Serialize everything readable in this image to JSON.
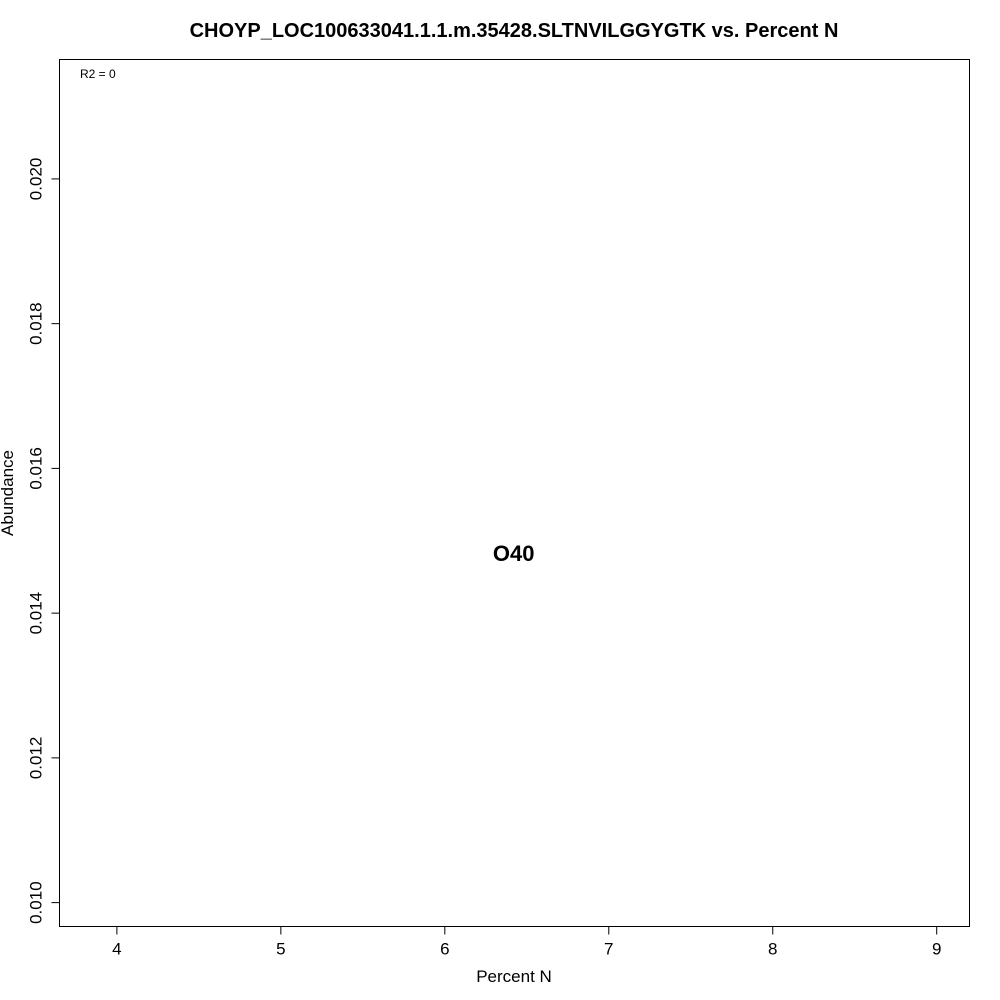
{
  "chart_data": {
    "type": "scatter",
    "title": "CHOYP_LOC100633041.1.1.m.35428.SLTNVILGGYGTK vs. Percent N",
    "xlabel": "Percent N",
    "ylabel": "Abundance",
    "xlim": [
      3.65,
      9.2
    ],
    "ylim": [
      0.00967,
      0.02165
    ],
    "x_ticks": [
      4,
      5,
      6,
      7,
      8,
      9
    ],
    "x_tick_labels": [
      "4",
      "5",
      "6",
      "7",
      "8",
      "9"
    ],
    "y_ticks": [
      0.01,
      0.012,
      0.014,
      0.016,
      0.018,
      0.02
    ],
    "y_tick_labels": [
      "0.010",
      "0.012",
      "0.014",
      "0.016",
      "0.018",
      "0.020"
    ],
    "annotation": "R2 = 0",
    "points": [
      {
        "x": 6.42,
        "y": 0.01483,
        "label": "O40"
      }
    ],
    "grid": false,
    "legend": "none"
  }
}
